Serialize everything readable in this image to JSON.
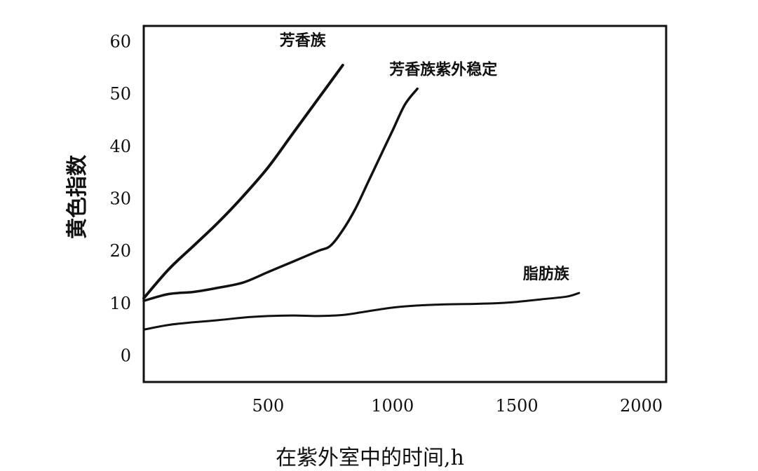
{
  "chart_data": {
    "type": "line",
    "xlabel": "在紫外室中的时间,h",
    "ylabel": "黄色指数",
    "x_tick_labels": [
      "500",
      "1000",
      "1500",
      "2000"
    ],
    "y_tick_labels": [
      "0",
      "10",
      "20",
      "30",
      "40",
      "50",
      "60"
    ],
    "xlim": [
      0,
      2100
    ],
    "ylim": [
      -5,
      63
    ],
    "grid": false,
    "legend": "none",
    "series": [
      {
        "name": "芳香族",
        "x": [
          0,
          100,
          200,
          300,
          400,
          500,
          600,
          700,
          800
        ],
        "y": [
          11,
          16.5,
          21,
          25.5,
          30.5,
          36,
          42.5,
          49,
          55.5
        ]
      },
      {
        "name": "芳香族紫外稳定",
        "x": [
          0,
          100,
          200,
          300,
          400,
          500,
          600,
          700,
          750,
          800,
          850,
          900,
          950,
          1000,
          1050,
          1100
        ],
        "y": [
          10.5,
          11.8,
          12.2,
          13,
          14,
          16,
          18,
          20,
          21,
          24,
          28,
          33,
          38,
          43,
          48,
          51
        ]
      },
      {
        "name": "脂肪族",
        "x": [
          0,
          100,
          200,
          300,
          400,
          500,
          600,
          700,
          800,
          900,
          1000,
          1100,
          1200,
          1300,
          1400,
          1500,
          1600,
          1700,
          1750
        ],
        "y": [
          5,
          5.9,
          6.4,
          6.8,
          7.3,
          7.6,
          7.7,
          7.6,
          7.8,
          8.5,
          9.2,
          9.6,
          9.8,
          9.9,
          10,
          10.3,
          10.8,
          11.3,
          12
        ]
      }
    ]
  }
}
